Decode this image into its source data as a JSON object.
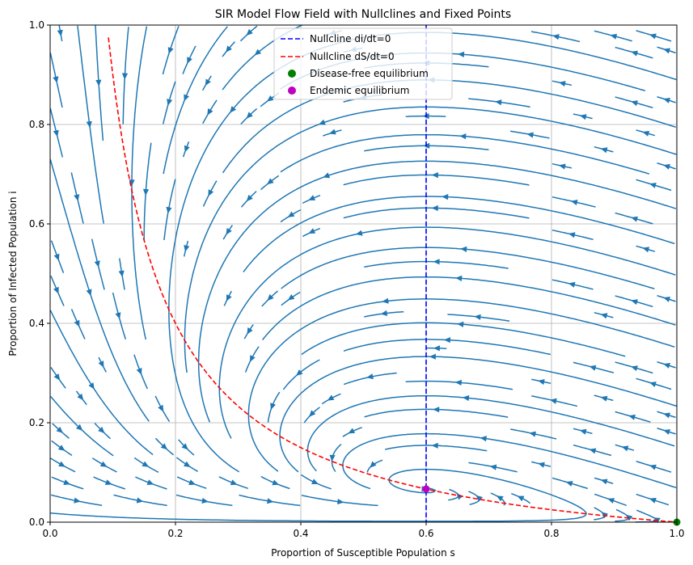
{
  "chart_data": {
    "type": "line",
    "title": "SIR Model Flow Field with Nullclines and Fixed Points",
    "xlabel": "Proportion of Susceptible Population s",
    "ylabel": "Proportion of Infected Population i",
    "xlim": [
      0,
      1
    ],
    "ylim": [
      0,
      1
    ],
    "xticks": [
      "0.0",
      "0.2",
      "0.4",
      "0.6",
      "0.8",
      "1.0"
    ],
    "yticks": [
      "0.0",
      "0.2",
      "0.4",
      "0.6",
      "0.8",
      "1.0"
    ],
    "grid": true,
    "legend_position": "top-center",
    "streamplot": {
      "model": "ds/dt = -beta*s*i + mu*(1 - s); di/dt = beta*s*i - (gamma + mu)*i",
      "beta": 1.0,
      "gamma": 0.5,
      "mu": 0.1,
      "color": "#1f77b4"
    },
    "series": [
      {
        "name": "Nullcline di/dt=0",
        "kind": "vline",
        "x": 0.6,
        "color": "#0000ff",
        "dash": "dashed"
      },
      {
        "name": "Nullcline dS/dt=0",
        "kind": "curve",
        "formula": "i = mu*(1 - s)/(beta*s)",
        "x_range": [
          0.09,
          1.0
        ],
        "color": "#ff0000",
        "dash": "dashed"
      },
      {
        "name": "Disease-free equilibrium",
        "kind": "point",
        "x": 1.0,
        "y": 0.0,
        "color": "#008000"
      },
      {
        "name": "Endemic equilibrium",
        "kind": "point",
        "x": 0.6,
        "y": 0.0667,
        "color": "#bf00bf"
      }
    ]
  }
}
